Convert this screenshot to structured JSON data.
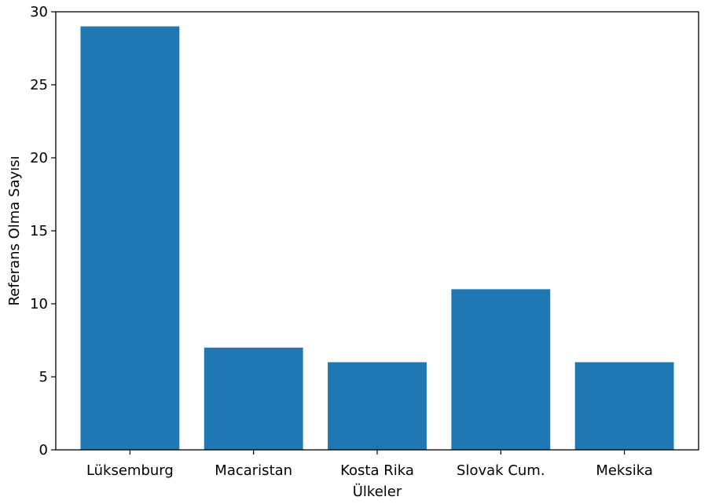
{
  "chart_data": {
    "type": "bar",
    "title": "",
    "xlabel": "Ülkeler",
    "ylabel": "Referans Olma Sayısı",
    "categories": [
      "Lüksemburg",
      "Macaristan",
      "Kosta Rika",
      "Slovak Cum.",
      "Meksika"
    ],
    "values": [
      29,
      7,
      6,
      11,
      6
    ],
    "ylim": [
      0,
      30
    ],
    "yticks": [
      0,
      5,
      10,
      15,
      20,
      25,
      30
    ],
    "grid": false,
    "bar_color": "#1f77b4"
  }
}
